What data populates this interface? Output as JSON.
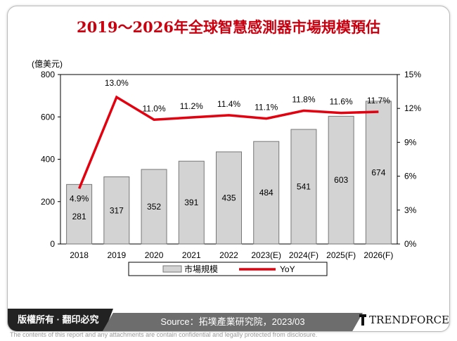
{
  "title": "2019～2026年全球智慧感測器市場規模預估",
  "chart_data": {
    "type": "bar+line",
    "categories": [
      "2018",
      "2019",
      "2020",
      "2021",
      "2022",
      "2023(E)",
      "2024(F)",
      "2025(F)",
      "2026(F)"
    ],
    "series": [
      {
        "name": "市場規模",
        "type": "bar",
        "axis": "left",
        "values": [
          281,
          317,
          352,
          391,
          435,
          484,
          541,
          603,
          674
        ],
        "color": "#d3d3d3"
      },
      {
        "name": "YoY",
        "type": "line",
        "axis": "right",
        "values": [
          4.9,
          13.0,
          11.0,
          11.2,
          11.4,
          11.1,
          11.8,
          11.6,
          11.7
        ],
        "labels": [
          "4.9%",
          "13.0%",
          "11.0%",
          "11.2%",
          "11.4%",
          "11.1%",
          "11.8%",
          "11.6%",
          "11.7%"
        ],
        "color": "#e3000f"
      }
    ],
    "ylabel": "(億美元)",
    "ylim": [
      0,
      800
    ],
    "yticks": [
      "0",
      "200",
      "400",
      "600",
      "800"
    ],
    "y2lim": [
      0,
      15
    ],
    "y2ticks": [
      "0%",
      "3%",
      "6%",
      "9%",
      "12%",
      "15%"
    ],
    "legend": "bottom",
    "grid": false
  },
  "footer": {
    "copyright": "版權所有 · 翻印必究",
    "source": "Source：拓墣產業研究院，2023/03",
    "brand": "TRENDFORCE",
    "disclaimer": "The contents of this report and any attachments are contain confidential and legally protected from disclosure."
  }
}
